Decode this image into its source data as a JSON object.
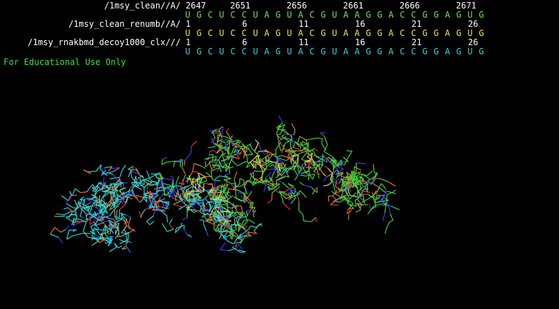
{
  "sequence_panel": {
    "objects": [
      {
        "name": "/1msy_clean//A/",
        "numbers": [
          "2647",
          "2651",
          "2656",
          "2661",
          "2666",
          "2671"
        ],
        "residues": [
          "U",
          "G",
          "C",
          "U",
          "C",
          "C",
          "U",
          "A",
          "G",
          "U",
          "A",
          "C",
          "G",
          "U",
          "A",
          "A",
          "G",
          "G",
          "A",
          "C",
          "C",
          "G",
          "G",
          "A",
          "G",
          "U",
          "G"
        ],
        "residue_color": "#6ee06e"
      },
      {
        "name": "/1msy_clean_renumb//A/",
        "numbers": [
          "1",
          "6",
          "11",
          "16",
          "21",
          "26"
        ],
        "residues": [
          "U",
          "G",
          "C",
          "U",
          "C",
          "C",
          "U",
          "A",
          "G",
          "U",
          "A",
          "C",
          "G",
          "U",
          "A",
          "A",
          "G",
          "G",
          "A",
          "C",
          "C",
          "G",
          "G",
          "A",
          "G",
          "U",
          "G"
        ],
        "residue_color": "#e8e84a"
      },
      {
        "name": "/1msy_rnakbmd_decoy1000_clx///",
        "numbers": [
          "1",
          "6",
          "11",
          "16",
          "21",
          "26"
        ],
        "residues": [
          "U",
          "G",
          "C",
          "U",
          "C",
          "C",
          "U",
          "A",
          "G",
          "U",
          "A",
          "C",
          "G",
          "U",
          "A",
          "A",
          "G",
          "G",
          "A",
          "C",
          "C",
          "G",
          "G",
          "A",
          "G",
          "U",
          "G"
        ],
        "residue_color": "#3ad3d3"
      }
    ]
  },
  "watermark": {
    "text": "For Educational Use Only",
    "color": "#3ce03c"
  },
  "viewport": {
    "colors": {
      "background": "#000000",
      "carbon_green": "#3ecf3e",
      "carbon_cyan": "#21d7d7",
      "carbon_yellow": "#d8d83a",
      "phosphorus": "#e8732a",
      "nitrogen": "#3a3af0",
      "oxygen": "#e03030"
    }
  }
}
